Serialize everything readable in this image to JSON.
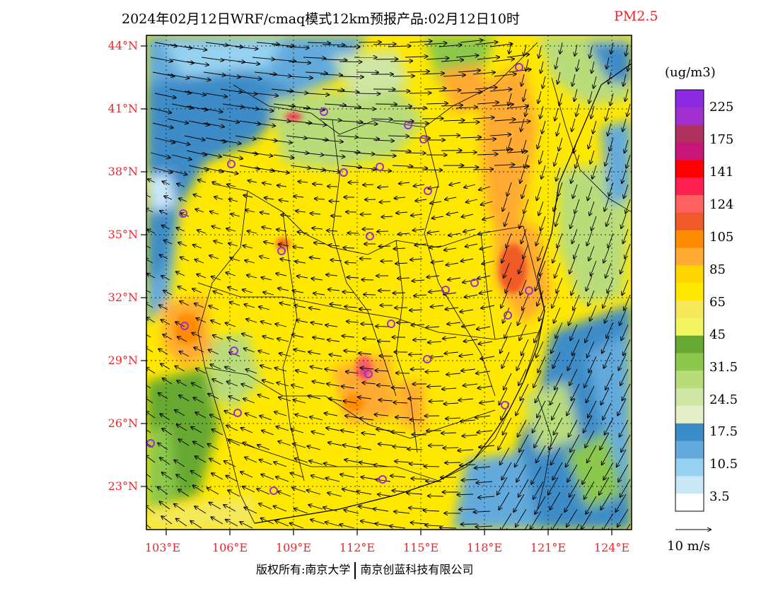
{
  "title": "2024年02月12日WRF/cmaq模式12km预报产品:02月12日10时",
  "pollutant": "PM2.5",
  "units": "(ug/m3)",
  "lat_labels": [
    "44°N",
    "41°N",
    "38°N",
    "35°N",
    "32°N",
    "29°N",
    "26°N",
    "23°N"
  ],
  "lon_labels": [
    "103°E",
    "106°E",
    "109°E",
    "112°E",
    "115°E",
    "118°E",
    "121°E",
    "124°E"
  ],
  "legend": {
    "labels": [
      "225",
      "175",
      "141",
      "124",
      "105",
      "85",
      "65",
      "45",
      "31.5",
      "24.5",
      "17.5",
      "10.5",
      "3.5"
    ],
    "colors": [
      "#8a2be2",
      "#a030d0",
      "#b03060",
      "#c8157a",
      "#ff0000",
      "#ff1f50",
      "#ff6060",
      "#f05a28",
      "#ff8c00",
      "#ffaa33",
      "#ffd700",
      "#ffe800",
      "#f5e85a",
      "#f0f560",
      "#66a832",
      "#8cc84b",
      "#b9dc7a",
      "#cfe6a4",
      "#e6f0c8",
      "#3c8cc8",
      "#64aadc",
      "#96d2f0",
      "#c8e8f8",
      "#ffffff"
    ]
  },
  "wind_vector_label": "10 m/s",
  "copyright": {
    "left": "版权所有:南京大学",
    "right": "南京创蓝科技有限公司"
  },
  "colors": {
    "axis_label": "#e8282e",
    "station_marker": "#9932cc"
  }
}
